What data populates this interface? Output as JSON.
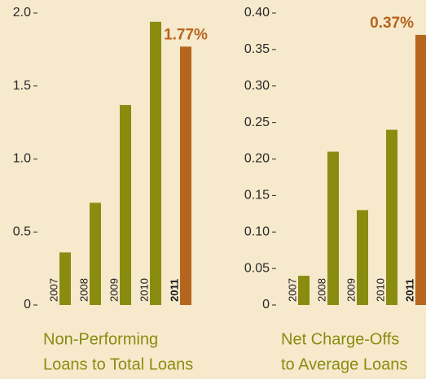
{
  "chart_data": [
    {
      "type": "bar",
      "title": [
        "Non-Performing",
        "Loans to Total Loans"
      ],
      "categories": [
        "2007",
        "2008",
        "2009",
        "2010",
        "2011"
      ],
      "values": [
        0.36,
        0.7,
        1.37,
        1.94,
        1.77
      ],
      "value_labels": [
        null,
        null,
        null,
        null,
        "1.77%"
      ],
      "colors": [
        "#8a8c10",
        "#8a8c10",
        "#8a8c10",
        "#8a8c10",
        "#b5651d"
      ],
      "ylim": [
        0,
        2
      ],
      "yticks": [
        0,
        0.5,
        {
          "value": 1,
          "label": "1.0"
        },
        1.5,
        {
          "value": 2,
          "label": "2.0"
        }
      ]
    },
    {
      "type": "bar",
      "title": [
        "Net Charge-Offs",
        "to Average Loans"
      ],
      "categories": [
        "2007",
        "2008",
        "2009",
        "2010",
        "2011"
      ],
      "values": [
        0.04,
        0.21,
        0.13,
        0.24,
        0.37
      ],
      "value_labels": [
        null,
        null,
        null,
        null,
        "0.37%"
      ],
      "colors": [
        "#8a8c10",
        "#8a8c10",
        "#8a8c10",
        "#8a8c10",
        "#b5651d"
      ],
      "ylim": [
        0,
        0.4
      ],
      "yticks": [
        0,
        0.05,
        {
          "value": 0.1,
          "label": "0.10"
        },
        0.15,
        {
          "value": 0.2,
          "label": "0.20"
        },
        0.25,
        {
          "value": 0.3,
          "label": "0.30"
        },
        0.35,
        {
          "value": 0.4,
          "label": "0.40"
        }
      ]
    }
  ]
}
